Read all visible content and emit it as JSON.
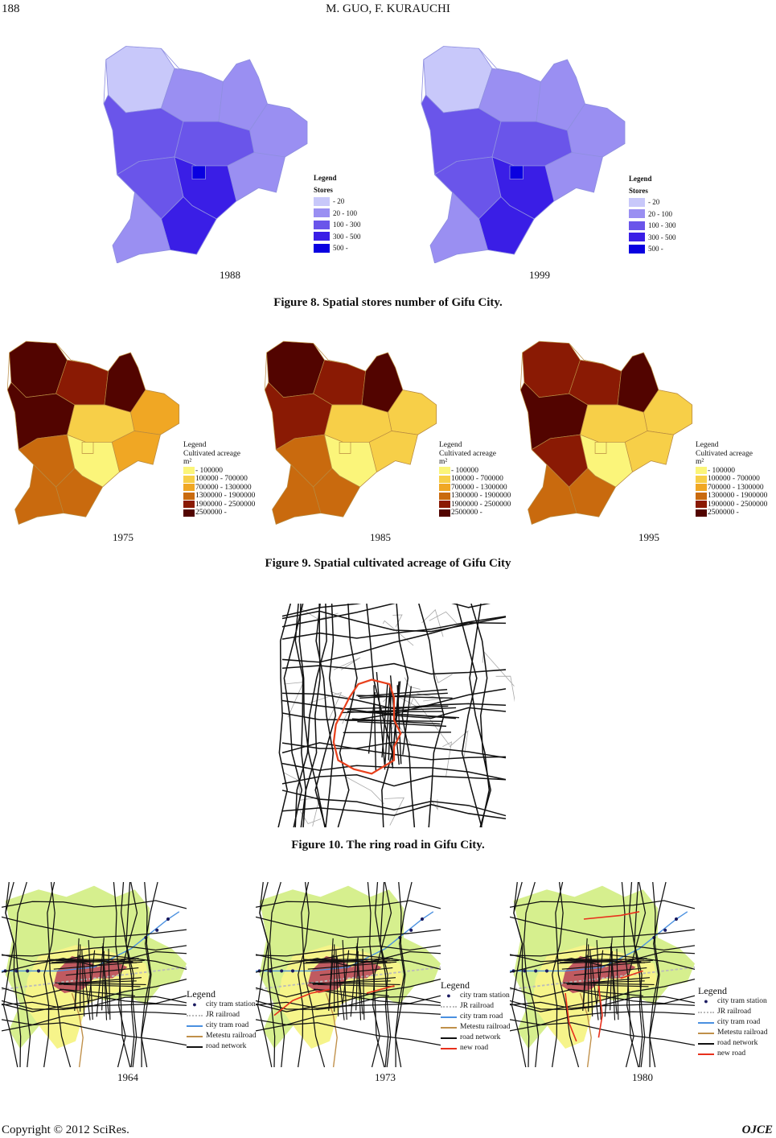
{
  "header": {
    "page_number": "188",
    "authors": "M. GUO, F. KURAUCHI"
  },
  "figure8": {
    "caption": "Figure 8. Spatial stores number of Gifu City.",
    "years": [
      "1988",
      "1999"
    ],
    "legend": {
      "title": "Legend",
      "subtitle": "Stores",
      "items": [
        {
          "label": "- 20",
          "color": "#c8c8fa"
        },
        {
          "label": "20 - 100",
          "color": "#9a8ff2"
        },
        {
          "label": "100 - 300",
          "color": "#6a55ea"
        },
        {
          "label": "300 - 500",
          "color": "#3a1ee6"
        },
        {
          "label": "500 -",
          "color": "#0a00e0"
        }
      ]
    }
  },
  "figure9": {
    "caption": "Figure 9. Spatial cultivated acreage of Gifu City",
    "years": [
      "1975",
      "1985",
      "1995"
    ],
    "legend": {
      "title": "Legend",
      "subtitle": "Cultivated acreage",
      "unit": "m²",
      "items": [
        {
          "label": "- 100000",
          "color": "#fbf57a"
        },
        {
          "label": "100000 - 700000",
          "color": "#f7cf48"
        },
        {
          "label": "700000 - 1300000",
          "color": "#f0a724"
        },
        {
          "label": "1300000 - 1900000",
          "color": "#c96a0e"
        },
        {
          "label": "1900000 - 2500000",
          "color": "#8a1a04"
        },
        {
          "label": "2500000 -",
          "color": "#520400"
        }
      ]
    }
  },
  "figure10": {
    "caption": "Figure 10. The ring road in Gifu City.",
    "ring_color": "#e8401c"
  },
  "figure11": {
    "years": [
      "1964",
      "1973",
      "1980"
    ],
    "legend_title": "Legend",
    "legends": [
      [
        {
          "label": "city tram station",
          "type": "dot",
          "color": "#1a1a60"
        },
        {
          "label": "JR railroad",
          "type": "dash",
          "color": "#bbbbbb"
        },
        {
          "label": "city tram road",
          "type": "line",
          "color": "#4a90e0"
        },
        {
          "label": "Metestu railroad",
          "type": "line",
          "color": "#c0904a"
        },
        {
          "label": "road network",
          "type": "line",
          "color": "#111111"
        }
      ],
      [
        {
          "label": "city tram station",
          "type": "dot",
          "color": "#1a1a60"
        },
        {
          "label": "JR railroad",
          "type": "dash",
          "color": "#bbbbbb"
        },
        {
          "label": "city tram road",
          "type": "line",
          "color": "#4a90e0"
        },
        {
          "label": "Metestu railroad",
          "type": "line",
          "color": "#c0904a"
        },
        {
          "label": "road network",
          "type": "line",
          "color": "#111111"
        },
        {
          "label": "new road",
          "type": "line",
          "color": "#e8301c"
        }
      ],
      [
        {
          "label": "city tram station",
          "type": "dot",
          "color": "#1a1a60"
        },
        {
          "label": "JR railroad",
          "type": "dash",
          "color": "#bbbbbb"
        },
        {
          "label": "city tram road",
          "type": "line",
          "color": "#4a90e0"
        },
        {
          "label": "Metestu railroad",
          "type": "line",
          "color": "#c0904a"
        },
        {
          "label": "road network",
          "type": "line",
          "color": "#111111"
        },
        {
          "label": "new road",
          "type": "line",
          "color": "#e8301c"
        }
      ]
    ]
  },
  "footer": {
    "copyright": "Copyright © 2012 SciRes.",
    "journal": "OJCE"
  }
}
